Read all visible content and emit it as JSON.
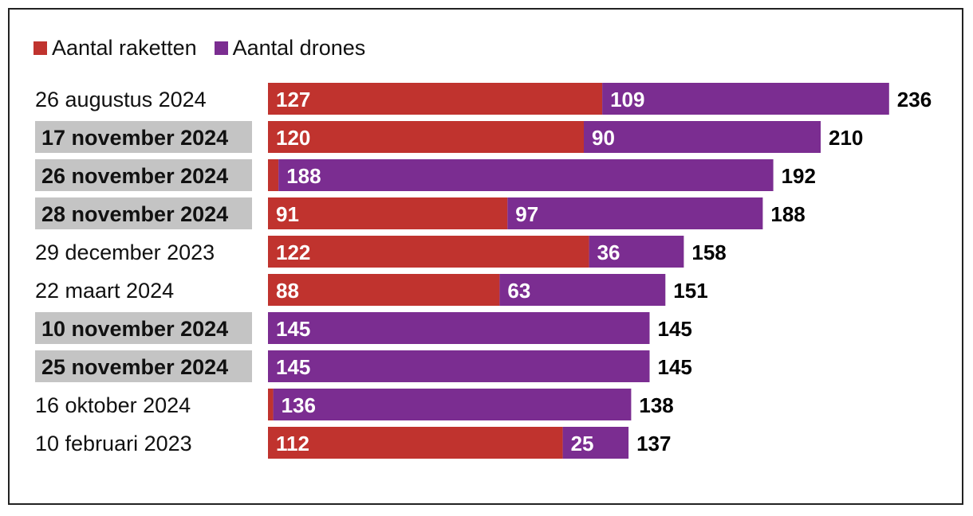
{
  "legend": {
    "rockets_label": "Aantal raketten",
    "drones_label": "Aantal drones"
  },
  "colors": {
    "rockets": "#c0332e",
    "drones": "#7b2d91",
    "highlight": "#c4c4c4"
  },
  "chart_data": {
    "type": "bar",
    "orientation": "horizontal",
    "stacked": true,
    "title": "",
    "xlabel": "",
    "ylabel": "",
    "categories": [
      "26 augustus 2024",
      "17 november 2024",
      "26 november 2024",
      "28 november 2024",
      "29 december 2023",
      "22 maart 2024",
      "10 november 2024",
      "25 november 2024",
      "16 oktober 2024",
      "10 februari 2023"
    ],
    "highlighted": [
      false,
      true,
      true,
      true,
      false,
      false,
      true,
      true,
      false,
      false
    ],
    "series": [
      {
        "name": "Aantal raketten",
        "values": [
          127,
          120,
          4,
          91,
          122,
          88,
          0,
          0,
          2,
          112
        ],
        "labels": [
          "127",
          "120",
          "",
          "91",
          "122",
          "88",
          "",
          "",
          "",
          "112"
        ]
      },
      {
        "name": "Aantal drones",
        "values": [
          109,
          90,
          188,
          97,
          36,
          63,
          145,
          145,
          136,
          25
        ],
        "labels": [
          "109",
          "90",
          "188",
          "97",
          "36",
          "63",
          "145",
          "145",
          "136",
          "25"
        ]
      }
    ],
    "totals": [
      236,
      210,
      192,
      188,
      158,
      151,
      145,
      145,
      138,
      137
    ],
    "xlim": [
      0,
      236
    ],
    "grid": false,
    "legend_position": "top-left"
  }
}
